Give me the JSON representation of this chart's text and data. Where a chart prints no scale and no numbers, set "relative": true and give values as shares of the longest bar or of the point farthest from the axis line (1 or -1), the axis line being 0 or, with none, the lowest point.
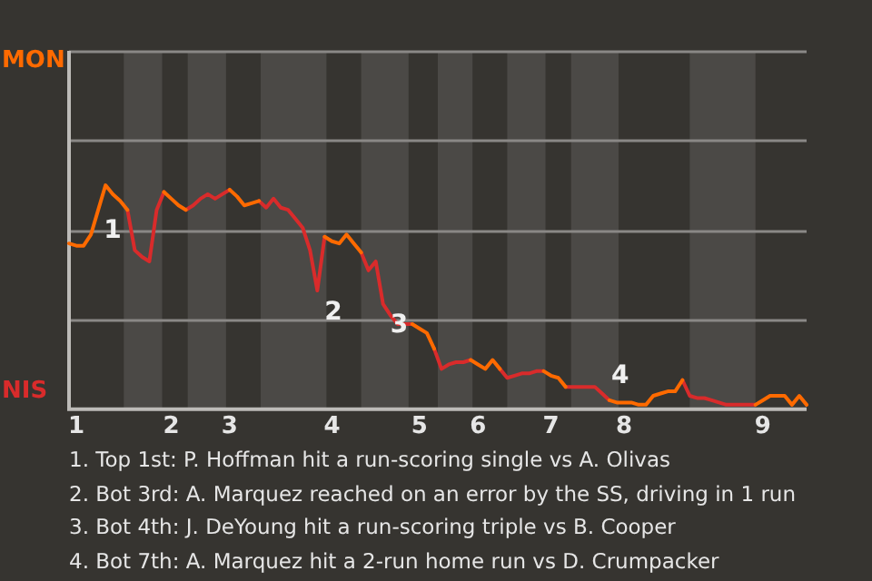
{
  "chart_data": {
    "type": "line",
    "relative": true,
    "categories": [
      null,
      "1",
      null,
      null,
      null,
      null,
      null,
      null,
      null,
      null,
      null,
      null,
      null,
      null,
      "2",
      null,
      null,
      null,
      null,
      null,
      null,
      null,
      "3",
      null,
      null,
      null,
      null,
      null,
      null,
      null,
      null,
      null,
      null,
      null,
      null,
      null,
      "4",
      null,
      null,
      null,
      null,
      null,
      null,
      null,
      null,
      null,
      null,
      null,
      "5",
      null,
      null,
      null,
      null,
      null,
      null,
      null,
      "6",
      null,
      null,
      null,
      null,
      null,
      null,
      null,
      null,
      null,
      "7",
      null,
      null,
      null,
      null,
      null,
      null,
      null,
      null,
      null,
      "8",
      null,
      null,
      null,
      null,
      null,
      null,
      null,
      null,
      null,
      null,
      null,
      null,
      null,
      null,
      null,
      null,
      null,
      null,
      "9",
      null,
      null,
      null,
      null,
      null,
      null
    ],
    "series": [
      {
        "color": "#ff6a00",
        "values": [
          0.74,
          0.73,
          0.73,
          0.78,
          0.89,
          1,
          0.96,
          0.93,
          0.89,
          null,
          null,
          null,
          null,
          0.97,
          0.94,
          0.91,
          0.89,
          null,
          null,
          null,
          null,
          null,
          0.98,
          0.95,
          0.91,
          0.92,
          0.93,
          null,
          null,
          null,
          null,
          null,
          null,
          null,
          null,
          0.77,
          0.75,
          0.74,
          0.78,
          0.74,
          0.7,
          null,
          null,
          null,
          null,
          null,
          null,
          0.38,
          0.36,
          0.34,
          0.27,
          null,
          null,
          null,
          null,
          0.22,
          0.2,
          0.18,
          0.22,
          0.18,
          null,
          null,
          null,
          null,
          null,
          0.17,
          0.15,
          0.14,
          0.1,
          null,
          null,
          null,
          null,
          null,
          0.04,
          0.03,
          0.03,
          0.03,
          0.02,
          0.02,
          0.06,
          0.07,
          0.08,
          0.08,
          0.13,
          null,
          null,
          null,
          null,
          null,
          null,
          null,
          null,
          null,
          0.02,
          0.04,
          0.06,
          0.06,
          0.06,
          0.02,
          0.06,
          0.02
        ]
      },
      {
        "color": "#d92b2b",
        "values": [
          null,
          null,
          null,
          null,
          null,
          null,
          null,
          null,
          0.89,
          0.71,
          0.68,
          0.66,
          0.89,
          0.97,
          null,
          null,
          0.89,
          0.91,
          0.94,
          0.96,
          0.94,
          0.96,
          0.98,
          null,
          null,
          null,
          0.93,
          0.9,
          0.94,
          0.9,
          0.89,
          0.85,
          0.81,
          0.71,
          0.53,
          0.77,
          null,
          null,
          null,
          null,
          0.7,
          0.62,
          0.66,
          0.47,
          0.42,
          0.38,
          0.38,
          0.38,
          null,
          null,
          0.27,
          0.18,
          0.2,
          0.21,
          0.21,
          0.22,
          null,
          null,
          null,
          0.18,
          0.14,
          0.15,
          0.16,
          0.16,
          0.17,
          0.17,
          null,
          null,
          0.1,
          0.1,
          0.1,
          0.1,
          0.1,
          0.07,
          0.04,
          null,
          null,
          null,
          null,
          null,
          null,
          null,
          null,
          null,
          0.13,
          0.06,
          0.05,
          0.05,
          0.04,
          0.03,
          0.02,
          0.02,
          0.02,
          0.02,
          0.02,
          null,
          null,
          null,
          null,
          null,
          null,
          null
        ]
      }
    ],
    "legend": false,
    "marker": "none",
    "line_style": "solid",
    "ref_lines": [
      {
        "axis": "y",
        "value": 0.4,
        "color": "#8a8886"
      },
      {
        "axis": "y",
        "value": 0.8,
        "color": "#8a8886"
      },
      {
        "axis": "y",
        "value": 1.2,
        "color": "#8a8886"
      },
      {
        "axis": "y",
        "value": 1.6,
        "color": "#8a8886"
      }
    ],
    "annotations": [
      "MON",
      "NIS",
      "1",
      "2",
      "3",
      "4",
      "1. Top 1st: P. Hoffman hit a run-scoring single vs A. Olivas",
      "2. Bot 3rd: A. Marquez reached on an error by the SS, driving in 1 run",
      "3. Bot 4th: J. DeYoung hit a run-scoring triple vs B. Cooper",
      "4. Bot 7th: A. Marquez hit a 2-run home run vs D. Crumpacker"
    ]
  }
}
